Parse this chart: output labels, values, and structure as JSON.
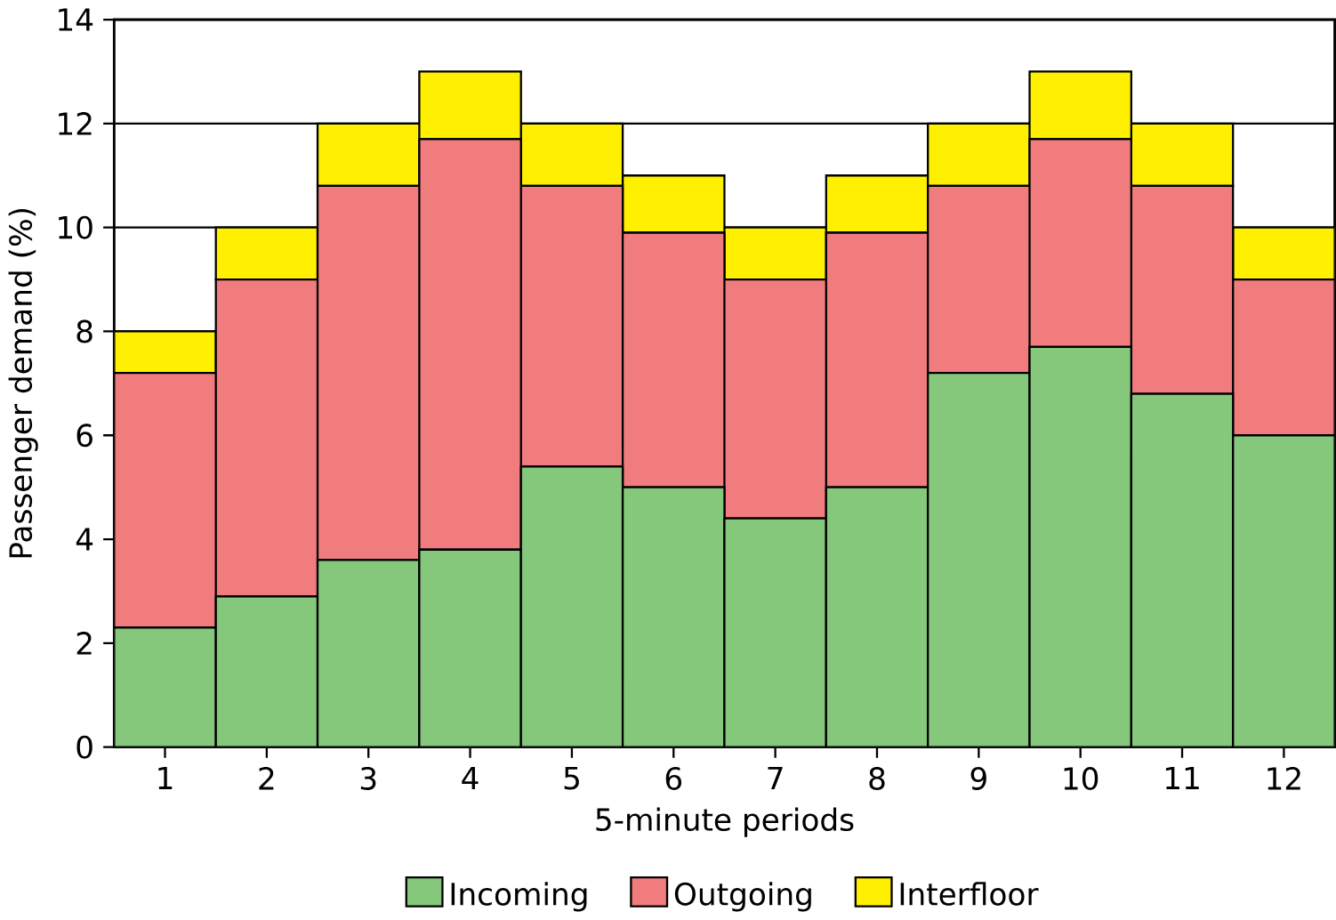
{
  "chart_data": {
    "type": "bar",
    "stacked": true,
    "xlabel": "5-minute periods",
    "ylabel": "Passenger demand (%)",
    "categories": [
      "1",
      "2",
      "3",
      "4",
      "5",
      "6",
      "7",
      "8",
      "9",
      "10",
      "11",
      "12"
    ],
    "series": [
      {
        "name": "Incoming",
        "color": "#85c77b",
        "values": [
          2.3,
          2.9,
          3.6,
          3.8,
          5.4,
          5.0,
          4.4,
          5.0,
          7.2,
          7.7,
          6.8,
          6.0
        ]
      },
      {
        "name": "Outgoing",
        "color": "#f07c7e",
        "values": [
          4.9,
          6.1,
          7.2,
          7.9,
          5.4,
          4.9,
          4.6,
          4.9,
          3.6,
          4.0,
          4.0,
          3.0
        ]
      },
      {
        "name": "Interfloor",
        "color": "#ffef00",
        "values": [
          0.8,
          1.0,
          1.2,
          1.3,
          1.2,
          1.1,
          1.0,
          1.1,
          1.2,
          1.3,
          1.2,
          1.0
        ]
      }
    ],
    "ylim": [
      0,
      14
    ],
    "yticks": [
      0,
      2,
      4,
      6,
      8,
      10,
      12,
      14
    ],
    "grid": "y",
    "legend": "bottom"
  }
}
